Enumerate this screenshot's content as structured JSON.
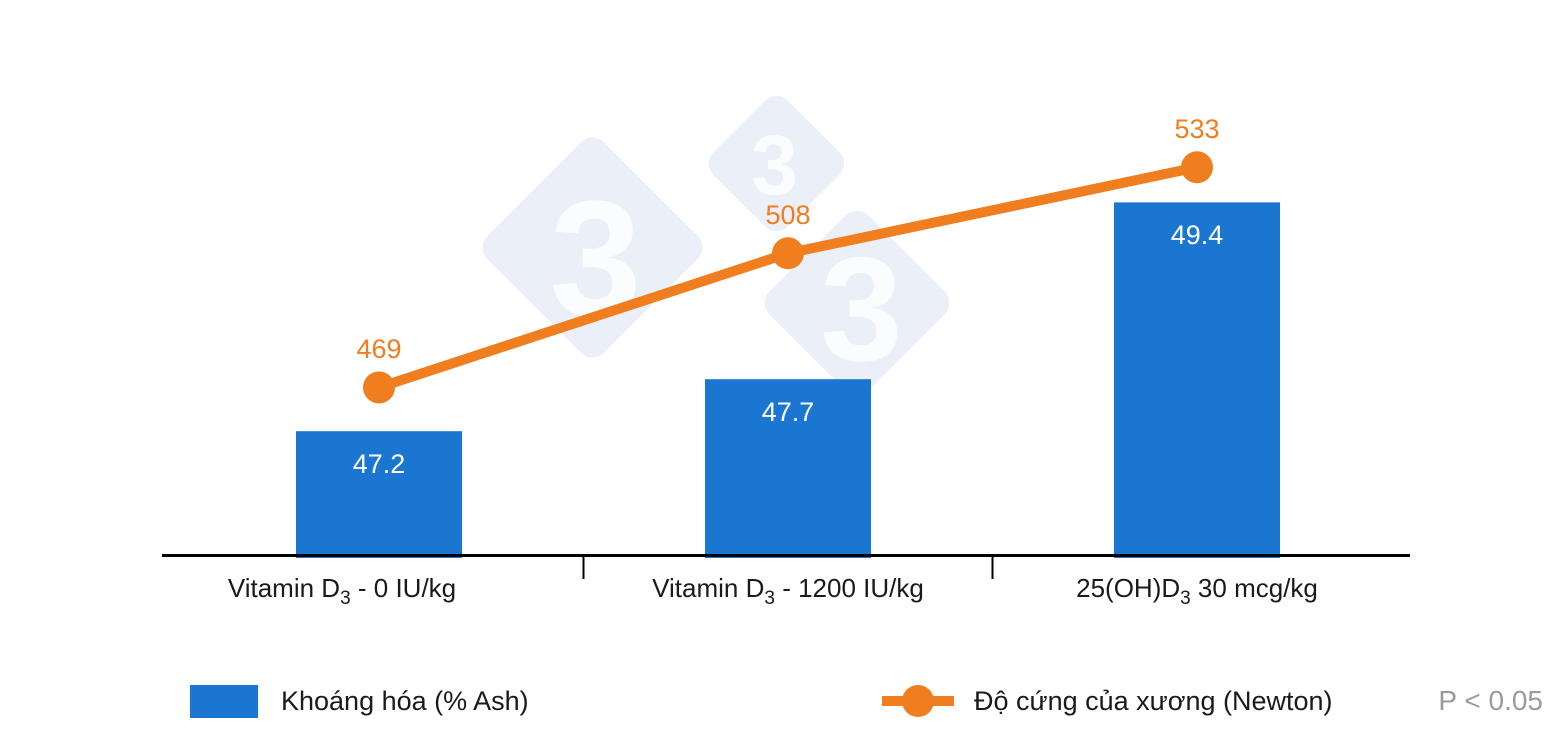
{
  "chart_data": {
    "type": "combo-bar-line",
    "categories": [
      {
        "pre": "Vitamin D",
        "sub": "3",
        "post": " - 0 IU/kg"
      },
      {
        "pre": "Vitamin D",
        "sub": "3",
        "post": " - 1200 IU/kg"
      },
      {
        "pre": "25(OH)D",
        "sub": "3",
        "post": " 30 mcg/kg"
      }
    ],
    "series": [
      {
        "name": "Khoáng hóa (% Ash)",
        "type": "bar",
        "values": [
          47.2,
          47.7,
          49.4
        ],
        "color": "#1B76D2",
        "label_color": "#FFFFFF"
      },
      {
        "name": "Độ cứng của xương (Newton)",
        "type": "line",
        "values": [
          469,
          508,
          533
        ],
        "color": "#F07D1E"
      }
    ],
    "bar_axis": {
      "min": 46,
      "max": 50.9,
      "visible": false
    },
    "line_axis": {
      "min": 420,
      "max": 583,
      "visible": false
    },
    "grid": false,
    "legend_position": "bottom",
    "annotation": "P < 0.05",
    "annotation_color": "#9B9B9B",
    "watermark": {
      "text": "3",
      "color": "#EBF0F8",
      "text_color": "#FBFCFE"
    }
  }
}
